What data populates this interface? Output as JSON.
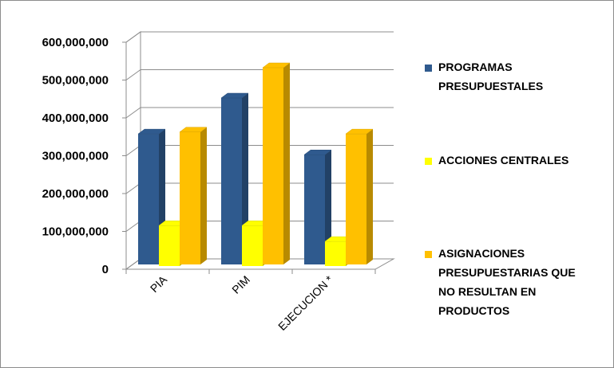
{
  "chart_data": {
    "type": "bar",
    "categories": [
      "PIA",
      "PIM",
      "EJECUCION *"
    ],
    "series": [
      {
        "name": "PROGRAMAS PRESUPUESTALES",
        "values": [
          345000000,
          440000000,
          290000000
        ],
        "color": "#2F5A8E"
      },
      {
        "name": "ACCIONES CENTRALES",
        "values": [
          107000000,
          107000000,
          65000000
        ],
        "color": "#FFFF00"
      },
      {
        "name": "ASIGNACIONES PRESUPUESTARIAS QUE NO RESULTAN EN PRODUCTOS",
        "values": [
          350000000,
          520000000,
          345000000
        ],
        "color": "#FFC000"
      }
    ],
    "yticks": [
      "0",
      "100,000,000",
      "200,000,000",
      "300,000,000",
      "400,000,000",
      "500,000,000",
      "600,000,000"
    ],
    "ylim": [
      0,
      600000000
    ],
    "grid": true,
    "legend_position": "right",
    "three_d": true
  },
  "legend": {
    "items": [
      {
        "lines": [
          "PROGRAMAS",
          "PRESUPUESTALES"
        ]
      },
      {
        "lines": [
          "ACCIONES CENTRALES"
        ]
      },
      {
        "lines": [
          "ASIGNACIONES",
          "PRESUPUESTARIAS  QUE",
          "NO RESULTAN  EN",
          "PRODUCTOS"
        ]
      }
    ]
  }
}
